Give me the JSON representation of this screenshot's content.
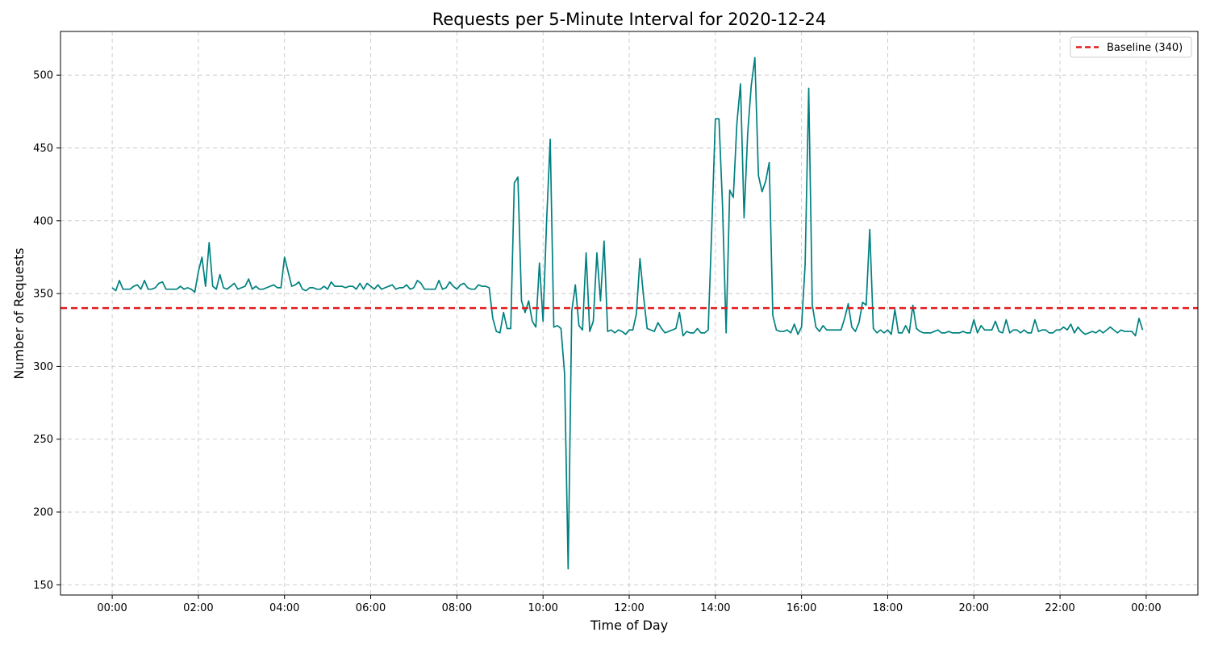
{
  "chart_data": {
    "type": "line",
    "title": "Requests per 5-Minute Interval for 2020-12-24",
    "xlabel": "Time of Day",
    "ylabel": "Number of Requests",
    "x_unit": "hours since 00:00",
    "xlim": [
      -1.2,
      25.2
    ],
    "ylim": [
      143,
      530
    ],
    "x_ticks": [
      0,
      2,
      4,
      6,
      8,
      10,
      12,
      14,
      16,
      18,
      20,
      22,
      24
    ],
    "x_tick_labels": [
      "00:00",
      "02:00",
      "04:00",
      "06:00",
      "08:00",
      "10:00",
      "12:00",
      "14:00",
      "16:00",
      "18:00",
      "20:00",
      "22:00",
      "00:00"
    ],
    "y_ticks": [
      150,
      200,
      250,
      300,
      350,
      400,
      450,
      500
    ],
    "y_tick_labels": [
      "150",
      "200",
      "250",
      "300",
      "350",
      "400",
      "450",
      "500"
    ],
    "grid": true,
    "legend": {
      "position": "top-right",
      "entries": [
        "Baseline (340)"
      ]
    },
    "baseline": {
      "name": "Baseline (340)",
      "value": 340,
      "color": "#e41a1c",
      "style": "dashed"
    },
    "series": [
      {
        "color": "#008080",
        "interval_minutes": 5,
        "values": [
          354,
          352,
          359,
          353,
          353,
          353,
          355,
          356,
          353,
          359,
          353,
          353,
          354,
          357,
          358,
          353,
          353,
          353,
          353,
          355,
          353,
          354,
          353,
          351,
          365,
          375,
          355,
          385,
          355,
          353,
          363,
          354,
          353,
          355,
          357,
          353,
          354,
          355,
          360,
          353,
          355,
          353,
          353,
          354,
          355,
          356,
          354,
          354,
          375,
          365,
          355,
          356,
          358,
          353,
          352,
          354,
          354,
          353,
          353,
          355,
          353,
          358,
          355,
          355,
          355,
          354,
          355,
          355,
          353,
          357,
          353,
          357,
          355,
          353,
          356,
          353,
          354,
          355,
          356,
          353,
          354,
          354,
          356,
          353,
          354,
          359,
          357,
          353,
          353,
          353,
          353,
          359,
          353,
          354,
          358,
          355,
          353,
          356,
          357,
          354,
          353,
          353,
          356,
          355,
          355,
          354,
          333,
          324,
          323,
          337,
          326,
          326,
          426,
          430,
          345,
          337,
          345,
          331,
          327,
          371,
          331,
          400,
          456,
          327,
          328,
          326,
          295,
          161,
          338,
          356,
          328,
          325,
          378,
          324,
          331,
          378,
          345,
          386,
          324,
          325,
          323,
          325,
          324,
          322,
          325,
          325,
          336,
          374,
          348,
          326,
          325,
          324,
          330,
          326,
          323,
          324,
          325,
          326,
          337,
          321,
          324,
          323,
          323,
          326,
          323,
          323,
          325,
          395,
          470,
          470,
          410,
          323,
          421,
          416,
          467,
          494,
          402,
          460,
          493,
          512,
          431,
          420,
          427,
          440,
          335,
          325,
          324,
          324,
          325,
          323,
          329,
          322,
          327,
          370,
          491,
          342,
          327,
          324,
          328,
          325,
          325,
          325,
          325,
          325,
          333,
          343,
          327,
          324,
          330,
          344,
          342,
          394,
          326,
          323,
          325,
          323,
          325,
          322,
          339,
          323,
          323,
          328,
          323,
          342,
          326,
          324,
          323,
          323,
          323,
          324,
          325,
          323,
          323,
          324,
          323,
          323,
          323,
          324,
          323,
          323,
          332,
          323,
          328,
          325,
          325,
          325,
          331,
          324,
          323,
          332,
          323,
          325,
          325,
          323,
          325,
          323,
          323,
          332,
          324,
          325,
          325,
          323,
          323,
          325,
          325,
          327,
          325,
          329,
          323,
          327,
          324,
          322,
          323,
          324,
          323,
          325,
          323,
          325,
          327,
          325,
          323,
          325,
          324,
          324,
          324,
          321,
          333,
          325
        ]
      }
    ]
  }
}
